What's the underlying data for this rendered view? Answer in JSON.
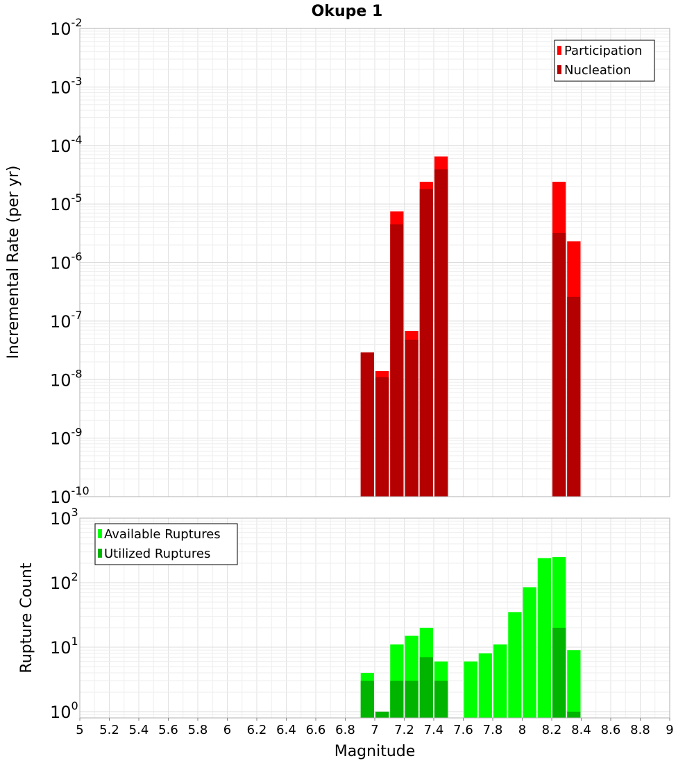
{
  "chart_data": [
    {
      "type": "bar",
      "title": "Okupe 1",
      "xlabel": "",
      "ylabel": "Incremental Rate (per yr)",
      "xlim": [
        5,
        9
      ],
      "ylim": [
        1e-10,
        0.01
      ],
      "yscale": "log",
      "grid": true,
      "legend_position": "top-right",
      "x": [
        6.95,
        7.05,
        7.15,
        7.25,
        7.35,
        7.45,
        8.25,
        8.35
      ],
      "series": [
        {
          "name": "Participation",
          "color": "#ff0000",
          "values": [
            2.9e-08,
            1.4e-08,
            7.5e-06,
            6.8e-08,
            2.4e-05,
            6.5e-05,
            2.4e-05,
            2.3e-06
          ]
        },
        {
          "name": "Nucleation",
          "color": "#b40000",
          "values": [
            2.9e-08,
            1.1e-08,
            4.5e-06,
            4.8e-08,
            1.8e-05,
            3.9e-05,
            3.2e-06,
            2.6e-07
          ]
        }
      ]
    },
    {
      "type": "bar",
      "title": "",
      "xlabel": "Magnitude",
      "ylabel": "Rupture Count",
      "xlim": [
        5,
        9
      ],
      "ylim": [
        0.8,
        1000
      ],
      "yscale": "log",
      "grid": true,
      "legend_position": "top-left",
      "x": [
        6.95,
        7.05,
        7.15,
        7.25,
        7.35,
        7.45,
        7.65,
        7.75,
        7.85,
        7.95,
        8.05,
        8.15,
        8.25,
        8.35
      ],
      "series": [
        {
          "name": "Available Ruptures",
          "color": "#00ff00",
          "values": [
            4,
            1,
            11,
            15,
            20,
            6,
            6,
            8,
            11,
            35,
            85,
            240,
            250,
            9
          ]
        },
        {
          "name": "Utilized Ruptures",
          "color": "#00b400",
          "values": [
            3,
            1,
            3,
            3,
            7,
            3,
            0,
            0,
            0,
            0,
            0,
            0,
            20,
            1
          ]
        }
      ]
    }
  ],
  "x_ticks": [
    "5",
    "5.2",
    "5.4",
    "5.6",
    "5.8",
    "6",
    "6.2",
    "6.4",
    "6.6",
    "6.8",
    "7",
    "7.2",
    "7.4",
    "7.6",
    "7.8",
    "8",
    "8.2",
    "8.4",
    "8.6",
    "8.8",
    "9"
  ],
  "top_y_ticks": [
    {
      "base": "10",
      "exp": "-2"
    },
    {
      "base": "10",
      "exp": "-3"
    },
    {
      "base": "10",
      "exp": "-4"
    },
    {
      "base": "10",
      "exp": "-5"
    },
    {
      "base": "10",
      "exp": "-6"
    },
    {
      "base": "10",
      "exp": "-7"
    },
    {
      "base": "10",
      "exp": "-8"
    },
    {
      "base": "10",
      "exp": "-9"
    },
    {
      "base": "10",
      "exp": "-10"
    }
  ],
  "bottom_y_ticks": [
    {
      "base": "10",
      "exp": "3"
    },
    {
      "base": "10",
      "exp": "2"
    },
    {
      "base": "10",
      "exp": "1"
    },
    {
      "base": "10",
      "exp": "0"
    }
  ]
}
